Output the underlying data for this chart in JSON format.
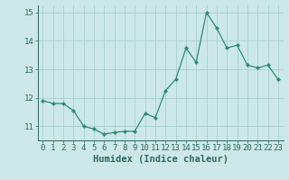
{
  "x": [
    0,
    1,
    2,
    3,
    4,
    5,
    6,
    7,
    8,
    9,
    10,
    11,
    12,
    13,
    14,
    15,
    16,
    17,
    18,
    19,
    20,
    21,
    22,
    23
  ],
  "y": [
    11.9,
    11.8,
    11.8,
    11.55,
    11.0,
    10.9,
    10.72,
    10.78,
    10.82,
    10.82,
    11.45,
    11.3,
    12.25,
    12.65,
    13.75,
    13.25,
    15.0,
    14.45,
    13.75,
    13.85,
    13.15,
    13.05,
    13.15,
    12.65
  ],
  "line_color": "#2e8b74",
  "marker": "D",
  "marker_size": 2.2,
  "bg_color": "#cce8e8",
  "grid_color": "#aacfcf",
  "axis_color": "#2e6b5e",
  "xlabel": "Humidex (Indice chaleur)",
  "ylim": [
    10.5,
    15.25
  ],
  "xlim": [
    -0.5,
    23.5
  ],
  "yticks": [
    11,
    12,
    13,
    14,
    15
  ],
  "xticks": [
    0,
    1,
    2,
    3,
    4,
    5,
    6,
    7,
    8,
    9,
    10,
    11,
    12,
    13,
    14,
    15,
    16,
    17,
    18,
    19,
    20,
    21,
    22,
    23
  ],
  "tick_fontsize": 6.5,
  "xlabel_fontsize": 7.5
}
